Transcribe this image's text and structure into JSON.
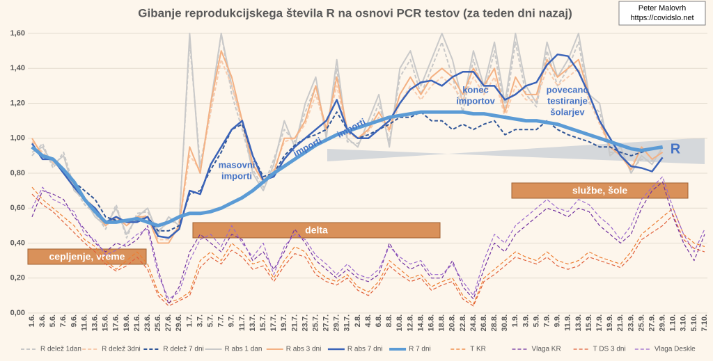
{
  "chart_data": {
    "type": "line",
    "title": "Gibanje reprodukcijskega števila R na osnovi PCR testov (za teden dni nazaj)",
    "credit": [
      "Peter Malovrh",
      "https://covidslo.net"
    ],
    "categories": [
      "1.6.",
      "3.6.",
      "5.6.",
      "7.6.",
      "9.6.",
      "11.6.",
      "13.6.",
      "15.6.",
      "17.6.",
      "19.6.",
      "21.6.",
      "23.6.",
      "25.6.",
      "27.6.",
      "29.6.",
      "1.7.",
      "3.7.",
      "5.7.",
      "7.7.",
      "9.7.",
      "11.7.",
      "13.7.",
      "15.7.",
      "17.7.",
      "19.7.",
      "21.7.",
      "23.7.",
      "25.7.",
      "27.7.",
      "29.7.",
      "31.7.",
      "2.8.",
      "4.8.",
      "6.8.",
      "8.8.",
      "10.8.",
      "12.8.",
      "14.8.",
      "16.8.",
      "18.8.",
      "20.8.",
      "22.8.",
      "24.8.",
      "26.8.",
      "28.8.",
      "30.8.",
      "1.9.",
      "3.9.",
      "5.9.",
      "7.9.",
      "9.9.",
      "11.9.",
      "13.9.",
      "15.9.",
      "17.9.",
      "19.9.",
      "21.9.",
      "23.9.",
      "25.9.",
      "27.9.",
      "29.9.",
      "1.10.",
      "3.10.",
      "5.10.",
      "7.10."
    ],
    "ylim": [
      0,
      1.6
    ],
    "yticks": [
      {
        "value": 0,
        "label": "0,00"
      },
      {
        "value": 0.2,
        "label": "0,20"
      },
      {
        "value": 0.4,
        "label": "0,40"
      },
      {
        "value": 0.6,
        "label": "0,60"
      },
      {
        "value": 0.8,
        "label": "0,80"
      },
      {
        "value": 1.0,
        "label": "1,00"
      },
      {
        "value": 1.2,
        "label": "1,20"
      },
      {
        "value": 1.4,
        "label": "1,40"
      },
      {
        "value": 1.6,
        "label": "1,60"
      }
    ],
    "grid": true,
    "series": [
      {
        "name": "R delež 1dan",
        "color": "#c8c8c8",
        "dash": true,
        "width": 2,
        "values": [
          0.9,
          0.97,
          0.83,
          0.92,
          0.72,
          0.62,
          0.57,
          0.48,
          0.62,
          0.43,
          0.57,
          0.58,
          0.47,
          0.52,
          0.52,
          1.55,
          0.85,
          1.15,
          1.6,
          1.25,
          1.05,
          0.82,
          0.72,
          0.88,
          1.05,
          0.98,
          1.15,
          1.3,
          1.02,
          1.4,
          0.98,
          0.97,
          1.05,
          1.2,
          0.98,
          1.35,
          1.45,
          1.25,
          1.4,
          1.55,
          1.35,
          1.15,
          1.45,
          1.25,
          1.5,
          1.15,
          1.55,
          1.25,
          1.18,
          1.5,
          1.3,
          1.4,
          1.55,
          1.2,
          1.15,
          0.92,
          0.92,
          0.82,
          0.88,
          0.87,
          0.93,
          null,
          null,
          null,
          null
        ]
      },
      {
        "name": "R delež 3dni",
        "color": "#f8cbad",
        "dash": true,
        "width": 2,
        "values": [
          0.98,
          0.92,
          0.86,
          0.82,
          0.73,
          0.66,
          0.6,
          0.52,
          0.54,
          0.51,
          0.54,
          0.56,
          0.42,
          0.42,
          0.5,
          0.9,
          0.82,
          1.15,
          1.45,
          1.3,
          1.08,
          0.86,
          0.76,
          0.82,
          0.98,
          1.0,
          1.08,
          1.25,
          1.05,
          1.3,
          1.03,
          1.0,
          1.04,
          1.12,
          1.04,
          1.2,
          1.3,
          1.22,
          1.3,
          1.35,
          1.3,
          1.22,
          1.35,
          1.25,
          1.35,
          1.12,
          1.3,
          1.22,
          1.22,
          1.4,
          1.3,
          1.35,
          1.4,
          1.22,
          1.08,
          0.95,
          0.9,
          0.84,
          0.94,
          0.88,
          0.92,
          null,
          null,
          null,
          null
        ]
      },
      {
        "name": "R delež 7 dni",
        "color": "#2f5597",
        "dash": true,
        "width": 2,
        "values": [
          0.95,
          0.9,
          0.88,
          0.82,
          0.75,
          0.7,
          0.65,
          0.55,
          0.53,
          0.53,
          0.53,
          0.55,
          0.47,
          0.47,
          0.5,
          0.68,
          0.7,
          0.82,
          0.92,
          1.05,
          1.08,
          0.9,
          0.78,
          0.8,
          0.9,
          0.96,
          1.0,
          1.02,
          1.05,
          1.15,
          1.05,
          1.0,
          1.02,
          1.05,
          1.08,
          1.12,
          1.12,
          1.15,
          1.1,
          1.1,
          1.05,
          1.08,
          1.05,
          1.08,
          1.1,
          1.02,
          1.05,
          1.05,
          1.05,
          1.1,
          1.05,
          1.02,
          1.0,
          0.98,
          0.95,
          0.95,
          0.92,
          0.9,
          0.92,
          0.94,
          0.95,
          null,
          null,
          null,
          null
        ]
      },
      {
        "name": "R abs 1 dan",
        "color": "#c9c9c9",
        "dash": false,
        "width": 2,
        "values": [
          0.92,
          0.95,
          0.85,
          0.9,
          0.7,
          0.65,
          0.55,
          0.5,
          0.6,
          0.45,
          0.55,
          0.6,
          0.45,
          0.55,
          0.5,
          1.6,
          0.8,
          1.2,
          1.6,
          1.3,
          1.1,
          0.8,
          0.7,
          0.85,
          1.1,
          0.95,
          1.2,
          1.35,
          1.0,
          1.45,
          1.0,
          0.95,
          1.1,
          1.25,
          0.95,
          1.4,
          1.5,
          1.3,
          1.45,
          1.6,
          1.45,
          1.2,
          1.5,
          1.3,
          1.55,
          1.2,
          1.6,
          1.3,
          1.2,
          1.55,
          1.35,
          1.45,
          1.6,
          1.25,
          1.2,
          0.9,
          0.95,
          0.8,
          0.9,
          0.85,
          0.95,
          null,
          null,
          null,
          null
        ]
      },
      {
        "name": "R abs 3 dni",
        "color": "#f4b183",
        "dash": false,
        "width": 2,
        "values": [
          1.0,
          0.9,
          0.88,
          0.8,
          0.72,
          0.65,
          0.58,
          0.5,
          0.55,
          0.5,
          0.55,
          0.55,
          0.4,
          0.4,
          0.5,
          0.95,
          0.8,
          1.2,
          1.5,
          1.35,
          1.1,
          0.85,
          0.75,
          0.8,
          1.0,
          1.0,
          1.1,
          1.3,
          1.05,
          1.35,
          1.05,
          1.0,
          1.05,
          1.15,
          1.05,
          1.25,
          1.35,
          1.25,
          1.35,
          1.4,
          1.35,
          1.25,
          1.4,
          1.3,
          1.4,
          1.15,
          1.35,
          1.25,
          1.25,
          1.45,
          1.35,
          1.4,
          1.45,
          1.25,
          1.1,
          0.95,
          0.9,
          0.82,
          0.95,
          0.88,
          0.92,
          null,
          null,
          null,
          null
        ]
      },
      {
        "name": "R abs 7 dni",
        "color": "#3a63b8",
        "dash": false,
        "width": 2.5,
        "values": [
          0.97,
          0.88,
          0.88,
          0.8,
          0.72,
          0.65,
          0.6,
          0.52,
          0.55,
          0.52,
          0.52,
          0.55,
          0.44,
          0.43,
          0.48,
          0.7,
          0.68,
          0.85,
          0.95,
          1.05,
          1.1,
          0.9,
          0.76,
          0.78,
          0.88,
          0.95,
          1.0,
          1.05,
          1.1,
          1.22,
          1.05,
          1.0,
          1.0,
          1.05,
          1.1,
          1.2,
          1.28,
          1.32,
          1.33,
          1.3,
          1.35,
          1.38,
          1.38,
          1.3,
          1.3,
          1.22,
          1.25,
          1.3,
          1.32,
          1.42,
          1.48,
          1.47,
          1.38,
          1.25,
          1.1,
          1.0,
          0.9,
          0.84,
          0.83,
          0.81,
          0.89,
          null,
          null,
          null,
          null
        ]
      },
      {
        "name": "R 7 dni",
        "color": "#5b9bd5",
        "dash": false,
        "width": 5,
        "values": [
          0.95,
          0.9,
          0.88,
          0.82,
          0.75,
          0.65,
          0.58,
          0.52,
          0.52,
          0.53,
          0.54,
          0.52,
          0.5,
          0.52,
          0.55,
          0.57,
          0.57,
          0.58,
          0.6,
          0.63,
          0.66,
          0.7,
          0.75,
          0.8,
          0.84,
          0.88,
          0.92,
          0.96,
          0.99,
          1.02,
          1.04,
          1.06,
          1.08,
          1.1,
          1.12,
          1.13,
          1.14,
          1.15,
          1.15,
          1.15,
          1.15,
          1.15,
          1.14,
          1.14,
          1.13,
          1.12,
          1.11,
          1.1,
          1.1,
          1.09,
          1.08,
          1.06,
          1.04,
          1.02,
          1.0,
          0.98,
          0.96,
          0.94,
          0.93,
          0.94,
          0.95,
          null,
          null,
          null,
          null
        ]
      },
      {
        "name": "T KR",
        "color": "#ed7d31",
        "dash": true,
        "width": 1.2,
        "values": [
          0.72,
          0.65,
          0.6,
          0.55,
          0.5,
          0.42,
          0.38,
          0.3,
          0.25,
          0.3,
          0.35,
          0.28,
          0.12,
          0.06,
          0.08,
          0.12,
          0.3,
          0.35,
          0.3,
          0.4,
          0.35,
          0.28,
          0.3,
          0.2,
          0.3,
          0.38,
          0.35,
          0.25,
          0.2,
          0.18,
          0.22,
          0.15,
          0.12,
          0.18,
          0.3,
          0.25,
          0.2,
          0.22,
          0.15,
          0.18,
          0.2,
          0.1,
          0.05,
          0.2,
          0.25,
          0.3,
          0.35,
          0.32,
          0.3,
          0.35,
          0.3,
          0.28,
          0.3,
          0.35,
          0.32,
          0.3,
          0.28,
          0.35,
          0.45,
          0.5,
          0.55,
          0.6,
          0.45,
          0.4,
          0.38
        ]
      },
      {
        "name": "Vlaga KR",
        "color": "#7030a0",
        "dash": true,
        "width": 1.2,
        "values": [
          0.55,
          0.7,
          0.68,
          0.65,
          0.55,
          0.48,
          0.4,
          0.35,
          0.4,
          0.38,
          0.42,
          0.5,
          0.25,
          0.05,
          0.15,
          0.35,
          0.45,
          0.4,
          0.35,
          0.45,
          0.42,
          0.3,
          0.35,
          0.25,
          0.35,
          0.48,
          0.4,
          0.3,
          0.25,
          0.2,
          0.25,
          0.2,
          0.18,
          0.22,
          0.4,
          0.3,
          0.25,
          0.28,
          0.2,
          0.2,
          0.3,
          0.15,
          0.08,
          0.25,
          0.4,
          0.35,
          0.45,
          0.5,
          0.55,
          0.6,
          0.58,
          0.55,
          0.6,
          0.58,
          0.5,
          0.45,
          0.4,
          0.45,
          0.6,
          0.7,
          0.75,
          0.55,
          0.4,
          0.3,
          0.45
        ]
      },
      {
        "name": "T DS 3 dni",
        "color": "#e0603a",
        "dash": true,
        "width": 1.2,
        "values": [
          0.68,
          0.62,
          0.58,
          0.52,
          0.46,
          0.4,
          0.35,
          0.28,
          0.24,
          0.27,
          0.32,
          0.25,
          0.1,
          0.04,
          0.07,
          0.1,
          0.26,
          0.32,
          0.28,
          0.36,
          0.32,
          0.25,
          0.27,
          0.18,
          0.27,
          0.34,
          0.32,
          0.22,
          0.18,
          0.16,
          0.2,
          0.13,
          0.1,
          0.16,
          0.27,
          0.22,
          0.18,
          0.2,
          0.13,
          0.16,
          0.18,
          0.08,
          0.04,
          0.18,
          0.22,
          0.27,
          0.32,
          0.3,
          0.28,
          0.32,
          0.27,
          0.25,
          0.27,
          0.32,
          0.3,
          0.28,
          0.26,
          0.32,
          0.42,
          0.46,
          0.5,
          0.56,
          0.42,
          0.37,
          0.35
        ]
      },
      {
        "name": "Vlaga Deskle",
        "color": "#9966cc",
        "dash": true,
        "width": 1.2,
        "values": [
          0.6,
          0.72,
          0.65,
          0.62,
          0.58,
          0.45,
          0.42,
          0.33,
          0.36,
          0.4,
          0.45,
          0.48,
          0.22,
          0.08,
          0.12,
          0.3,
          0.42,
          0.45,
          0.38,
          0.5,
          0.4,
          0.32,
          0.4,
          0.22,
          0.38,
          0.45,
          0.42,
          0.33,
          0.28,
          0.22,
          0.28,
          0.22,
          0.2,
          0.25,
          0.38,
          0.32,
          0.28,
          0.3,
          0.22,
          0.22,
          0.28,
          0.18,
          0.1,
          0.3,
          0.45,
          0.4,
          0.5,
          0.55,
          0.6,
          0.65,
          0.6,
          0.58,
          0.65,
          0.62,
          0.55,
          0.5,
          0.42,
          0.5,
          0.65,
          0.72,
          0.78,
          0.6,
          0.45,
          0.35,
          0.48
        ]
      }
    ],
    "annotations": [
      [
        "masovni",
        "importi"
      ],
      [
        "importi"
      ],
      [
        "importi"
      ],
      [
        "konec",
        "importov"
      ],
      [
        "povecano",
        "testiranje",
        "šolarjev"
      ],
      [
        "R"
      ]
    ],
    "phases": [
      "cepljenje, vreme",
      "delta",
      "službe, šole"
    ]
  }
}
